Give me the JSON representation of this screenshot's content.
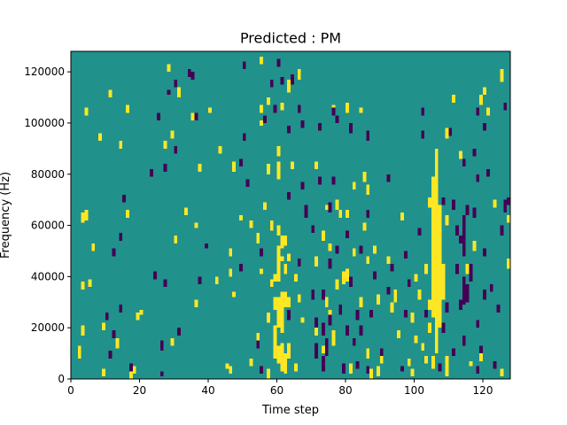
{
  "chart_data": {
    "type": "heatmap",
    "title": "Predicted : PM",
    "xlabel": "Time step",
    "ylabel": "Frequency (Hz)",
    "xlim": [
      0,
      128
    ],
    "ylim": [
      0,
      128000
    ],
    "x_ticks": [
      0,
      20,
      40,
      60,
      80,
      100,
      120
    ],
    "y_ticks": [
      0,
      20000,
      40000,
      60000,
      80000,
      100000,
      120000
    ],
    "x_tick_labels": [
      "0",
      "20",
      "40",
      "60",
      "80",
      "100",
      "120"
    ],
    "y_tick_labels": [
      "0",
      "20000",
      "40000",
      "60000",
      "80000",
      "100000",
      "120000"
    ],
    "grid": false,
    "colormap": "viridis",
    "colors": {
      "background": "#21918c",
      "high": "#fde725",
      "low": "#440154"
    },
    "n_time_steps": 128,
    "n_freq_bins": 128,
    "freq_bin_hz": 1000,
    "high_cells": [
      [
        2,
        8,
        13
      ],
      [
        3,
        17,
        21
      ],
      [
        3,
        35,
        38
      ],
      [
        3,
        61,
        65
      ],
      [
        4,
        62,
        66
      ],
      [
        5,
        36,
        39
      ],
      [
        6,
        50,
        53
      ],
      [
        4,
        103,
        106
      ],
      [
        9,
        1,
        4
      ],
      [
        9,
        19,
        22
      ],
      [
        11,
        110,
        113
      ],
      [
        14,
        90,
        93
      ],
      [
        16,
        63,
        66
      ],
      [
        16,
        104,
        107
      ],
      [
        17,
        0,
        3
      ],
      [
        18,
        2,
        5
      ],
      [
        19,
        23,
        26
      ],
      [
        20,
        25,
        27
      ],
      [
        27,
        90,
        93
      ],
      [
        28,
        120,
        123
      ],
      [
        29,
        13,
        16
      ],
      [
        29,
        94,
        97
      ],
      [
        30,
        53,
        56
      ],
      [
        31,
        110,
        114
      ],
      [
        36,
        28,
        31
      ],
      [
        36,
        59,
        61
      ],
      [
        40,
        104,
        106
      ],
      [
        45,
        4,
        6
      ],
      [
        46,
        2,
        5
      ],
      [
        47,
        32,
        34
      ],
      [
        49,
        62,
        64
      ],
      [
        52,
        59,
        62
      ],
      [
        52,
        5,
        8
      ],
      [
        54,
        53,
        57
      ],
      [
        55,
        41,
        43
      ],
      [
        55,
        99,
        101
      ],
      [
        55,
        104,
        107
      ],
      [
        55,
        123,
        126
      ],
      [
        57,
        0,
        4
      ],
      [
        57,
        22,
        26
      ],
      [
        57,
        80,
        84
      ],
      [
        58,
        36,
        39
      ],
      [
        58,
        58,
        62
      ],
      [
        59,
        8,
        21
      ],
      [
        59,
        27,
        32
      ],
      [
        59,
        38,
        41
      ],
      [
        60,
        6,
        13
      ],
      [
        60,
        20,
        32
      ],
      [
        60,
        38,
        52
      ],
      [
        60,
        56,
        60
      ],
      [
        60,
        78,
        85
      ],
      [
        60,
        87,
        91
      ],
      [
        61,
        3,
        14
      ],
      [
        61,
        18,
        34
      ],
      [
        61,
        46,
        48
      ],
      [
        61,
        51,
        56
      ],
      [
        61,
        105,
        108
      ],
      [
        62,
        2,
        10
      ],
      [
        62,
        28,
        34
      ],
      [
        62,
        41,
        45
      ],
      [
        62,
        52,
        56
      ],
      [
        63,
        8,
        14
      ],
      [
        63,
        46,
        49
      ],
      [
        63,
        112,
        117
      ],
      [
        65,
        38,
        41
      ],
      [
        67,
        22,
        24
      ],
      [
        71,
        82,
        85
      ],
      [
        73,
        54,
        58
      ],
      [
        74,
        28,
        32
      ],
      [
        74,
        66,
        68
      ],
      [
        75,
        25,
        27
      ],
      [
        76,
        13,
        19
      ],
      [
        77,
        35,
        39
      ],
      [
        78,
        63,
        66
      ],
      [
        79,
        37,
        42
      ],
      [
        80,
        38,
        43
      ],
      [
        82,
        48,
        51
      ],
      [
        82,
        74,
        77
      ],
      [
        81,
        2,
        6
      ],
      [
        80,
        104,
        108
      ],
      [
        84,
        28,
        32
      ],
      [
        84,
        104,
        106
      ],
      [
        85,
        58,
        61
      ],
      [
        85,
        77,
        81
      ],
      [
        86,
        8,
        12
      ],
      [
        86,
        45,
        48
      ],
      [
        87,
        0,
        4
      ],
      [
        89,
        1,
        5
      ],
      [
        90,
        6,
        9
      ],
      [
        93,
        26,
        30
      ],
      [
        94,
        30,
        35
      ],
      [
        95,
        16,
        19
      ],
      [
        98,
        5,
        8
      ],
      [
        99,
        1,
        4
      ],
      [
        100,
        38,
        41
      ],
      [
        100,
        14,
        17
      ],
      [
        101,
        31,
        35
      ],
      [
        102,
        11,
        14
      ],
      [
        103,
        6,
        9
      ],
      [
        103,
        41,
        45
      ],
      [
        104,
        18,
        22
      ],
      [
        104,
        27,
        31
      ],
      [
        104,
        67,
        71
      ],
      [
        105,
        4,
        9
      ],
      [
        105,
        24,
        79
      ],
      [
        106,
        10,
        90
      ],
      [
        107,
        20,
        68
      ],
      [
        108,
        31,
        45
      ],
      [
        109,
        1,
        9
      ],
      [
        109,
        94,
        98
      ],
      [
        111,
        108,
        111
      ],
      [
        113,
        86,
        89
      ],
      [
        115,
        41,
        45
      ],
      [
        116,
        5,
        7
      ],
      [
        119,
        7,
        11
      ],
      [
        119,
        107,
        111
      ],
      [
        120,
        111,
        114
      ],
      [
        121,
        103,
        106
      ],
      [
        125,
        1,
        4
      ],
      [
        127,
        61,
        64
      ],
      [
        127,
        43,
        47
      ],
      [
        86,
        72,
        76
      ],
      [
        99,
        22,
        26
      ],
      [
        96,
        62,
        65
      ],
      [
        109,
        60,
        64
      ],
      [
        46,
        40,
        43
      ],
      [
        35,
        101,
        104
      ],
      [
        47,
        81,
        85
      ],
      [
        37,
        81,
        84
      ],
      [
        73,
        10,
        13
      ],
      [
        75,
        50,
        53
      ],
      [
        66,
        30,
        33
      ],
      [
        66,
        117,
        121
      ],
      [
        63,
        28,
        32
      ],
      [
        71,
        44,
        48
      ],
      [
        89,
        29,
        33
      ],
      [
        71,
        17,
        20
      ],
      [
        57,
        107,
        110
      ],
      [
        76,
        104,
        107
      ],
      [
        8,
        93,
        96
      ],
      [
        13,
        12,
        16
      ],
      [
        65,
        3,
        6
      ],
      [
        64,
        82,
        85
      ],
      [
        77,
        66,
        70
      ],
      [
        42,
        37,
        40
      ],
      [
        33,
        64,
        67
      ],
      [
        92,
        45,
        48
      ],
      [
        123,
        67,
        70
      ],
      [
        125,
        116,
        121
      ],
      [
        80,
        63,
        66
      ],
      [
        88,
        49,
        52
      ],
      [
        54,
        14,
        18
      ],
      [
        46,
        48,
        51
      ],
      [
        117,
        50,
        54
      ],
      [
        43,
        88,
        91
      ],
      [
        56,
        66,
        69
      ]
    ],
    "low_cells": [
      [
        14,
        54,
        57
      ],
      [
        12,
        48,
        51
      ],
      [
        15,
        69,
        72
      ],
      [
        11,
        8,
        11
      ],
      [
        12,
        16,
        19
      ],
      [
        10,
        23,
        26
      ],
      [
        17,
        3,
        6
      ],
      [
        14,
        26,
        29
      ],
      [
        23,
        79,
        82
      ],
      [
        25,
        101,
        104
      ],
      [
        26,
        1,
        3
      ],
      [
        26,
        11,
        15
      ],
      [
        27,
        36,
        39
      ],
      [
        28,
        111,
        113
      ],
      [
        30,
        114,
        117
      ],
      [
        30,
        88,
        91
      ],
      [
        36,
        101,
        104
      ],
      [
        37,
        37,
        40
      ],
      [
        39,
        51,
        53
      ],
      [
        49,
        42,
        45
      ],
      [
        51,
        75,
        78
      ],
      [
        50,
        93,
        96
      ],
      [
        54,
        12,
        15
      ],
      [
        55,
        2,
        5
      ],
      [
        55,
        48,
        51
      ],
      [
        56,
        100,
        103
      ],
      [
        59,
        104,
        107
      ],
      [
        60,
        122,
        125
      ],
      [
        63,
        23,
        27
      ],
      [
        63,
        70,
        73
      ],
      [
        63,
        96,
        99
      ],
      [
        64,
        115,
        119
      ],
      [
        66,
        44,
        47
      ],
      [
        67,
        74,
        77
      ],
      [
        67,
        98,
        101
      ],
      [
        68,
        63,
        68
      ],
      [
        70,
        31,
        35
      ],
      [
        70,
        57,
        60
      ],
      [
        71,
        20,
        24
      ],
      [
        71,
        8,
        14
      ],
      [
        72,
        76,
        79
      ],
      [
        72,
        97,
        100
      ],
      [
        73,
        3,
        9
      ],
      [
        73,
        17,
        22
      ],
      [
        73,
        31,
        35
      ],
      [
        74,
        9,
        16
      ],
      [
        75,
        65,
        69
      ],
      [
        75,
        21,
        25
      ],
      [
        75,
        43,
        47
      ],
      [
        76,
        103,
        106
      ],
      [
        76,
        76,
        79
      ],
      [
        77,
        49,
        52
      ],
      [
        77,
        100,
        103
      ],
      [
        78,
        25,
        29
      ],
      [
        79,
        2,
        6
      ],
      [
        80,
        17,
        21
      ],
      [
        80,
        55,
        58
      ],
      [
        81,
        36,
        40
      ],
      [
        81,
        96,
        100
      ],
      [
        82,
        13,
        16
      ],
      [
        83,
        23,
        27
      ],
      [
        84,
        17,
        21
      ],
      [
        84,
        49,
        52
      ],
      [
        86,
        63,
        66
      ],
      [
        86,
        2,
        5
      ],
      [
        87,
        24,
        27
      ],
      [
        88,
        39,
        42
      ],
      [
        90,
        9,
        12
      ],
      [
        92,
        33,
        36
      ],
      [
        93,
        42,
        45
      ],
      [
        96,
        3,
        5
      ],
      [
        97,
        24,
        27
      ],
      [
        98,
        36,
        39
      ],
      [
        101,
        56,
        59
      ],
      [
        102,
        94,
        97
      ],
      [
        103,
        24,
        27
      ],
      [
        107,
        3,
        6
      ],
      [
        108,
        18,
        22
      ],
      [
        108,
        68,
        71
      ],
      [
        109,
        26,
        30
      ],
      [
        111,
        9,
        12
      ],
      [
        111,
        66,
        70
      ],
      [
        112,
        41,
        45
      ],
      [
        112,
        56,
        60
      ],
      [
        113,
        27,
        31
      ],
      [
        113,
        53,
        56
      ],
      [
        114,
        13,
        17
      ],
      [
        114,
        29,
        40
      ],
      [
        114,
        48,
        64
      ],
      [
        115,
        64,
        68
      ],
      [
        115,
        30,
        37
      ],
      [
        116,
        38,
        45
      ],
      [
        117,
        63,
        67
      ],
      [
        118,
        20,
        23
      ],
      [
        118,
        77,
        80
      ],
      [
        118,
        2,
        5
      ],
      [
        119,
        10,
        13
      ],
      [
        120,
        31,
        35
      ],
      [
        120,
        48,
        51
      ],
      [
        121,
        79,
        82
      ],
      [
        122,
        34,
        37
      ],
      [
        123,
        4,
        7
      ],
      [
        124,
        26,
        29
      ],
      [
        125,
        56,
        60
      ],
      [
        126,
        65,
        70
      ],
      [
        127,
        68,
        71
      ],
      [
        126,
        105,
        108
      ],
      [
        120,
        97,
        100
      ],
      [
        110,
        95,
        98
      ],
      [
        102,
        103,
        106
      ],
      [
        86,
        93,
        97
      ],
      [
        66,
        104,
        107
      ],
      [
        49,
        83,
        86
      ],
      [
        34,
        118,
        121
      ],
      [
        31,
        17,
        20
      ],
      [
        27,
        81,
        84
      ],
      [
        24,
        39,
        42
      ],
      [
        35,
        117,
        120
      ],
      [
        50,
        121,
        124
      ],
      [
        92,
        77,
        80
      ],
      [
        61,
        115,
        118
      ],
      [
        58,
        114,
        117
      ],
      [
        83,
        4,
        7
      ],
      [
        97,
        47,
        50
      ],
      [
        114,
        83,
        86
      ],
      [
        117,
        87,
        90
      ],
      [
        118,
        103,
        106
      ]
    ]
  }
}
